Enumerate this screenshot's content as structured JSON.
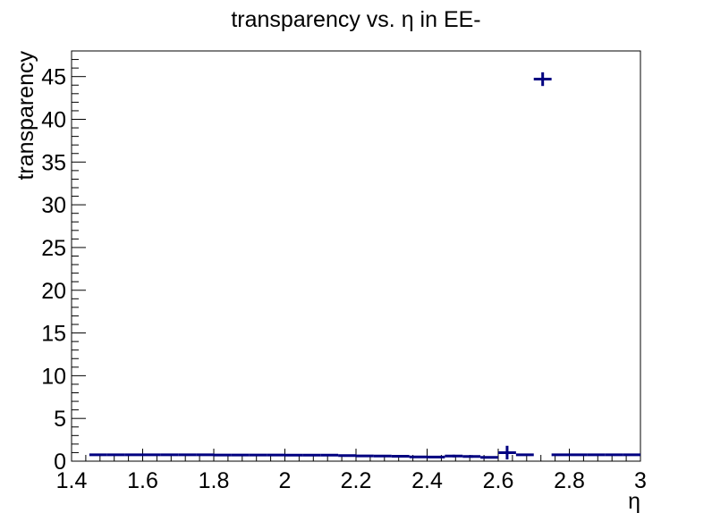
{
  "chart_data": {
    "type": "scatter",
    "title": "transparency vs. η in EE-",
    "xlabel": "η",
    "ylabel": "transparency",
    "xlim": [
      1.4,
      3.0
    ],
    "ylim": [
      0,
      48
    ],
    "grid": false,
    "legend": "none",
    "color": "#000080",
    "x_ticks": [
      "1.4",
      "1.6",
      "1.8",
      "2",
      "2.2",
      "2.4",
      "2.6",
      "2.8",
      "3"
    ],
    "y_ticks": [
      "0",
      "5",
      "10",
      "15",
      "20",
      "25",
      "30",
      "35",
      "40",
      "45"
    ],
    "series": [
      {
        "points": [
          {
            "x": 1.475,
            "y": 0.75,
            "xerr": 0.025,
            "yerr": 0.05
          },
          {
            "x": 1.525,
            "y": 0.75,
            "xerr": 0.025,
            "yerr": 0.05
          },
          {
            "x": 1.575,
            "y": 0.75,
            "xerr": 0.025,
            "yerr": 0.05
          },
          {
            "x": 1.625,
            "y": 0.75,
            "xerr": 0.025,
            "yerr": 0.05
          },
          {
            "x": 1.675,
            "y": 0.75,
            "xerr": 0.025,
            "yerr": 0.05
          },
          {
            "x": 1.725,
            "y": 0.75,
            "xerr": 0.025,
            "yerr": 0.05
          },
          {
            "x": 1.775,
            "y": 0.75,
            "xerr": 0.025,
            "yerr": 0.05
          },
          {
            "x": 1.825,
            "y": 0.72,
            "xerr": 0.025,
            "yerr": 0.05
          },
          {
            "x": 1.875,
            "y": 0.72,
            "xerr": 0.025,
            "yerr": 0.05
          },
          {
            "x": 1.925,
            "y": 0.72,
            "xerr": 0.025,
            "yerr": 0.05
          },
          {
            "x": 1.975,
            "y": 0.72,
            "xerr": 0.025,
            "yerr": 0.05
          },
          {
            "x": 2.025,
            "y": 0.7,
            "xerr": 0.025,
            "yerr": 0.05
          },
          {
            "x": 2.075,
            "y": 0.7,
            "xerr": 0.025,
            "yerr": 0.05
          },
          {
            "x": 2.125,
            "y": 0.7,
            "xerr": 0.025,
            "yerr": 0.05
          },
          {
            "x": 2.175,
            "y": 0.65,
            "xerr": 0.025,
            "yerr": 0.05
          },
          {
            "x": 2.225,
            "y": 0.62,
            "xerr": 0.025,
            "yerr": 0.05
          },
          {
            "x": 2.275,
            "y": 0.6,
            "xerr": 0.025,
            "yerr": 0.05
          },
          {
            "x": 2.325,
            "y": 0.58,
            "xerr": 0.025,
            "yerr": 0.05
          },
          {
            "x": 2.375,
            "y": 0.5,
            "xerr": 0.025,
            "yerr": 0.05
          },
          {
            "x": 2.425,
            "y": 0.48,
            "xerr": 0.025,
            "yerr": 0.05
          },
          {
            "x": 2.475,
            "y": 0.6,
            "xerr": 0.025,
            "yerr": 0.15
          },
          {
            "x": 2.525,
            "y": 0.55,
            "xerr": 0.025,
            "yerr": 0.15
          },
          {
            "x": 2.575,
            "y": 0.45,
            "xerr": 0.025,
            "yerr": 0.05
          },
          {
            "x": 2.625,
            "y": 1.0,
            "xerr": 0.025,
            "yerr": 0.8
          },
          {
            "x": 2.675,
            "y": 0.75,
            "xerr": 0.025,
            "yerr": 0.05
          },
          {
            "x": 2.725,
            "y": 44.7,
            "xerr": 0.025,
            "yerr": 0.8
          },
          {
            "x": 2.775,
            "y": 0.75,
            "xerr": 0.025,
            "yerr": 0.05
          },
          {
            "x": 2.825,
            "y": 0.75,
            "xerr": 0.025,
            "yerr": 0.05
          },
          {
            "x": 2.875,
            "y": 0.75,
            "xerr": 0.025,
            "yerr": 0.05
          },
          {
            "x": 2.925,
            "y": 0.75,
            "xerr": 0.025,
            "yerr": 0.05
          },
          {
            "x": 2.975,
            "y": 0.75,
            "xerr": 0.025,
            "yerr": 0.05
          }
        ]
      }
    ]
  }
}
